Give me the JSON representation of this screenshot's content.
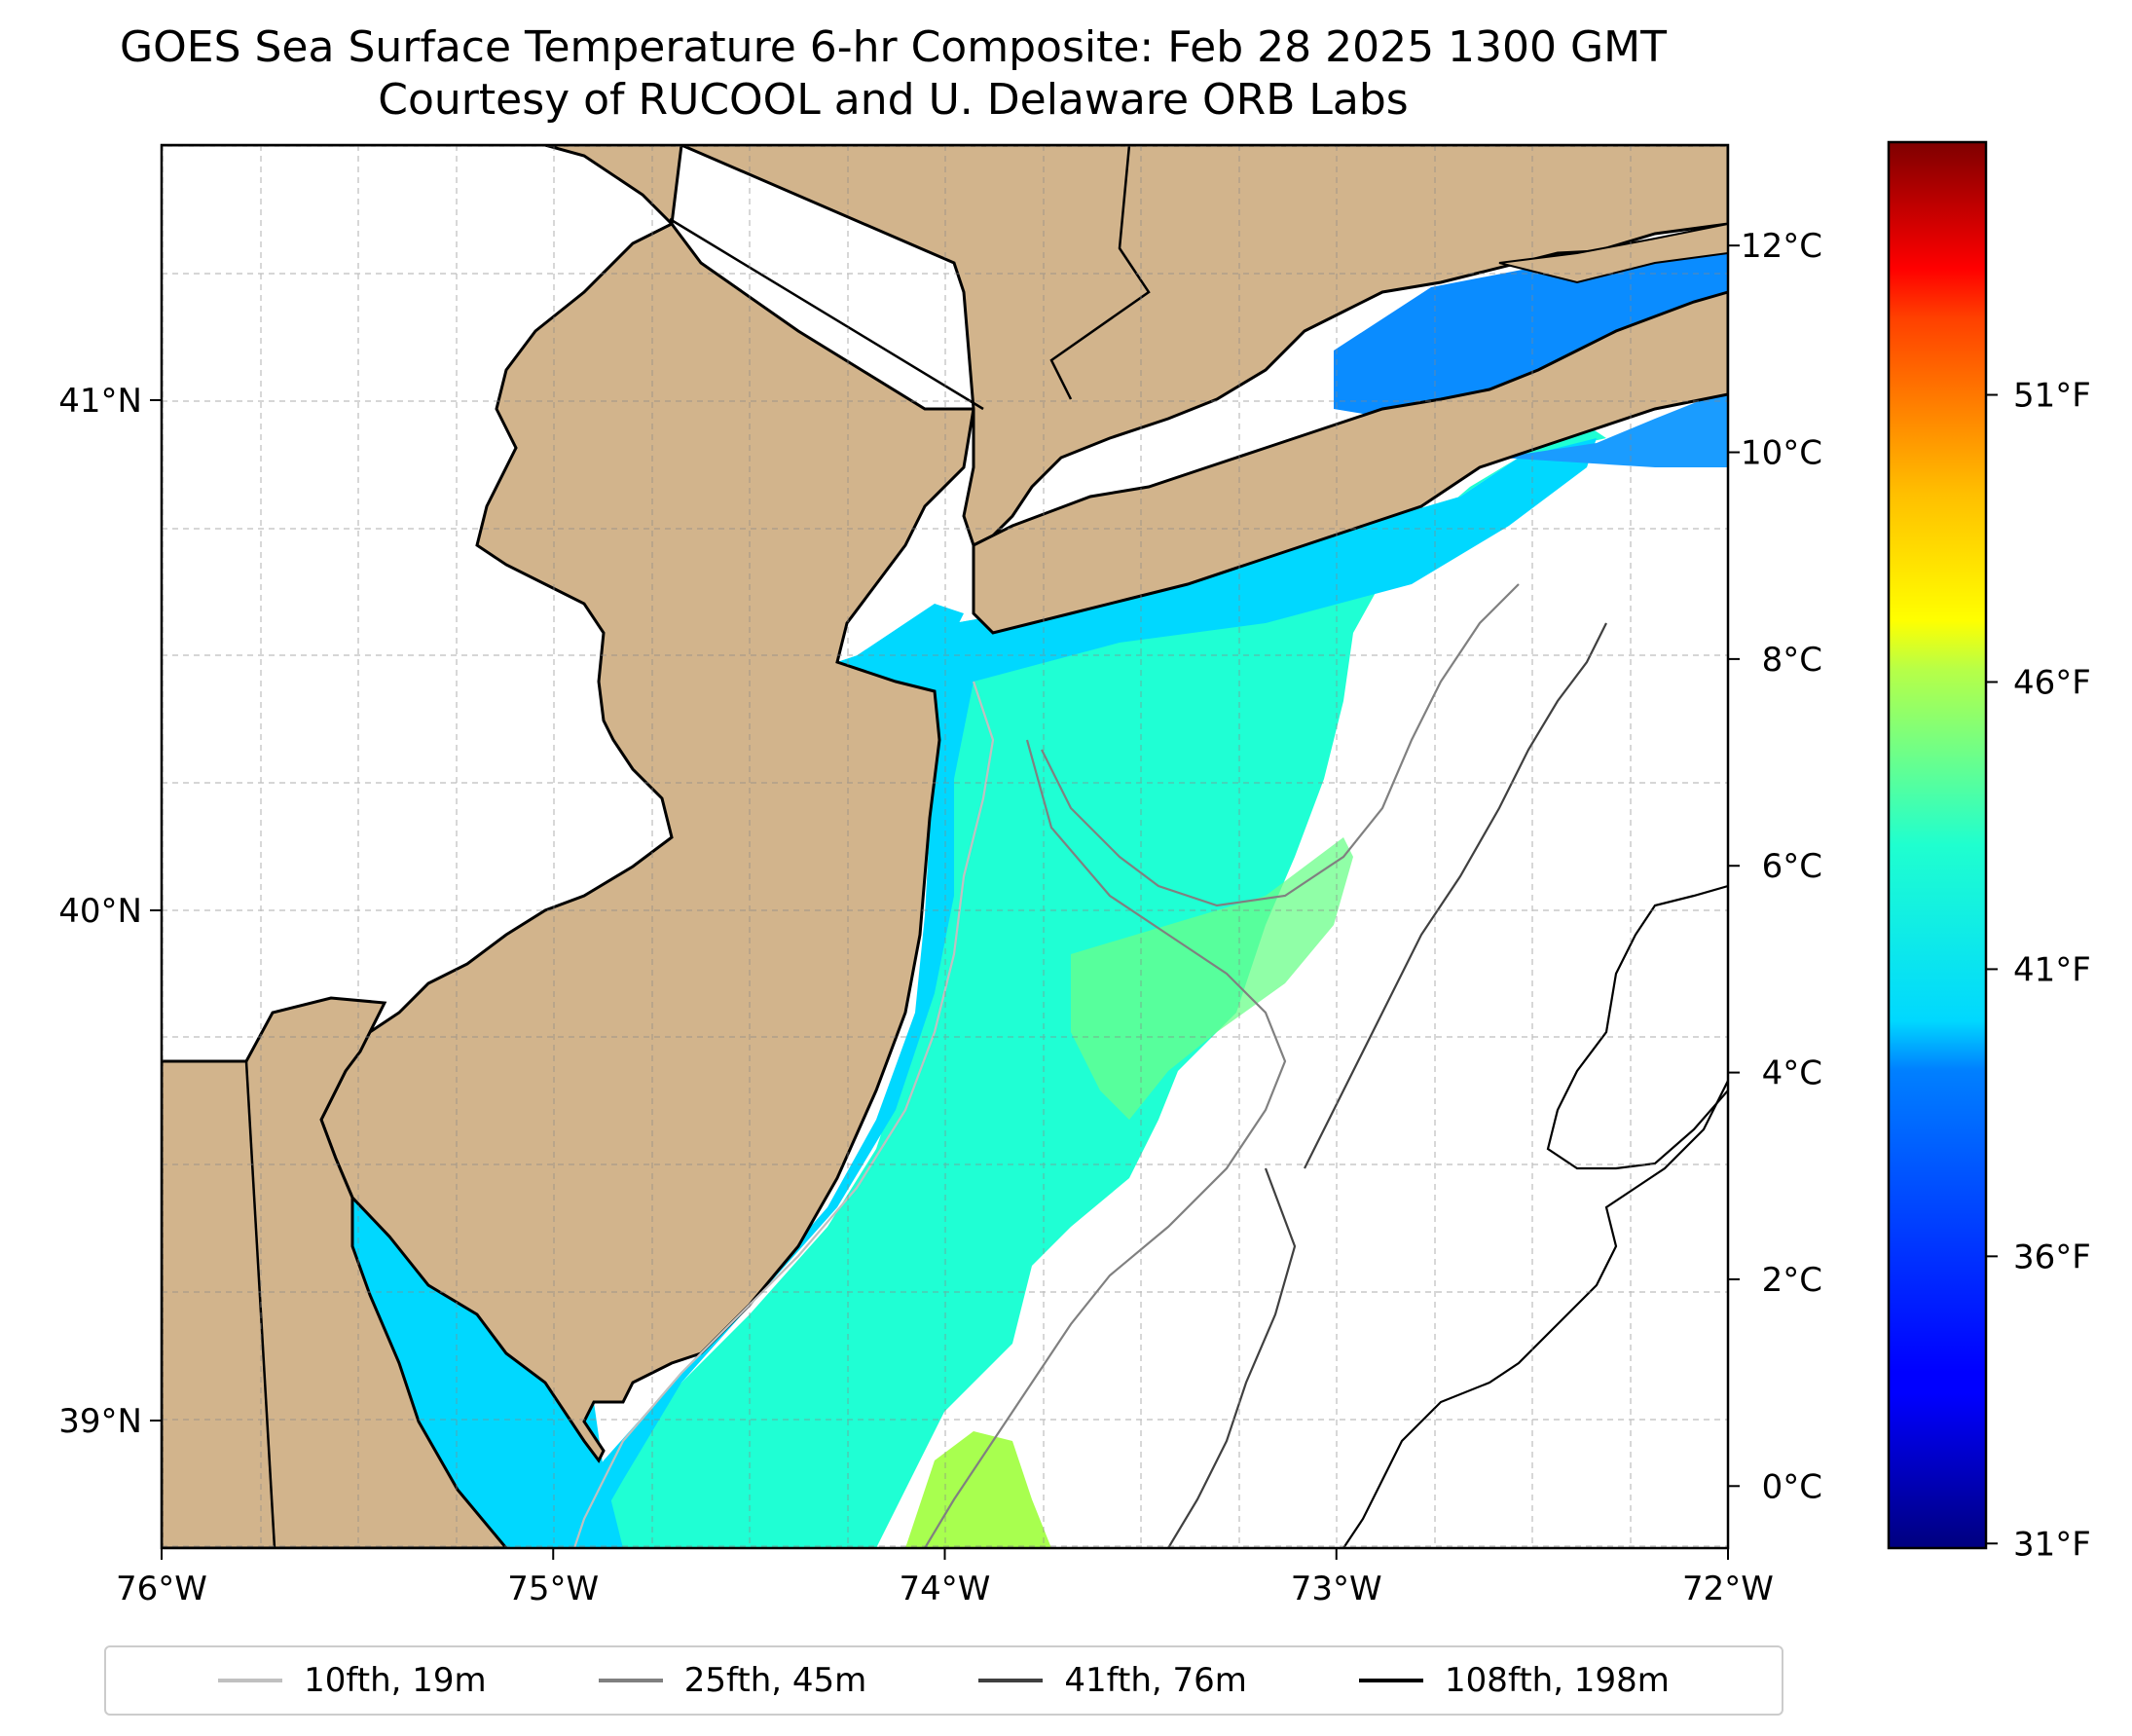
{
  "title": {
    "line1": "GOES Sea Surface Temperature 6-hr Composite: Feb 28 2025 1300 GMT",
    "line2": "Courtesy of RUCOOL and U. Delaware ORB Labs"
  },
  "map": {
    "lon_range": [
      -76,
      -72
    ],
    "lat_range": [
      38.75,
      41.5
    ],
    "lon_ticks": [
      {
        "value": -76,
        "label": "76°W"
      },
      {
        "value": -75,
        "label": "75°W"
      },
      {
        "value": -74,
        "label": "74°W"
      },
      {
        "value": -73,
        "label": "73°W"
      },
      {
        "value": -72,
        "label": "72°W"
      }
    ],
    "lat_ticks": [
      {
        "value": 39,
        "label": "39°N"
      },
      {
        "value": 40,
        "label": "40°N"
      },
      {
        "value": 41,
        "label": "41°N"
      }
    ],
    "gridlines": true,
    "land_color": "#d2b48c",
    "water_color": "#ffffff"
  },
  "colorbar": {
    "colormap": "jet",
    "range_c": [
      -0.6,
      13.0
    ],
    "celsius_ticks": [
      {
        "value": 0,
        "label": "0°C"
      },
      {
        "value": 2,
        "label": "2°C"
      },
      {
        "value": 4,
        "label": "4°C"
      },
      {
        "value": 6,
        "label": "6°C"
      },
      {
        "value": 8,
        "label": "8°C"
      },
      {
        "value": 10,
        "label": "10°C"
      },
      {
        "value": 12,
        "label": "12°C"
      }
    ],
    "fahrenheit_ticks": [
      {
        "value": 31,
        "label": "31°F"
      },
      {
        "value": 36,
        "label": "36°F"
      },
      {
        "value": 41,
        "label": "41°F"
      },
      {
        "value": 46,
        "label": "46°F"
      },
      {
        "value": 51,
        "label": "51°F"
      }
    ]
  },
  "legend": [
    {
      "label": "10fth, 19m",
      "color": "#c0c0c0"
    },
    {
      "label": "25fth, 45m",
      "color": "#808080"
    },
    {
      "label": "41fth, 76m",
      "color": "#404040"
    },
    {
      "label": "108fth, 198m",
      "color": "#000000"
    }
  ]
}
